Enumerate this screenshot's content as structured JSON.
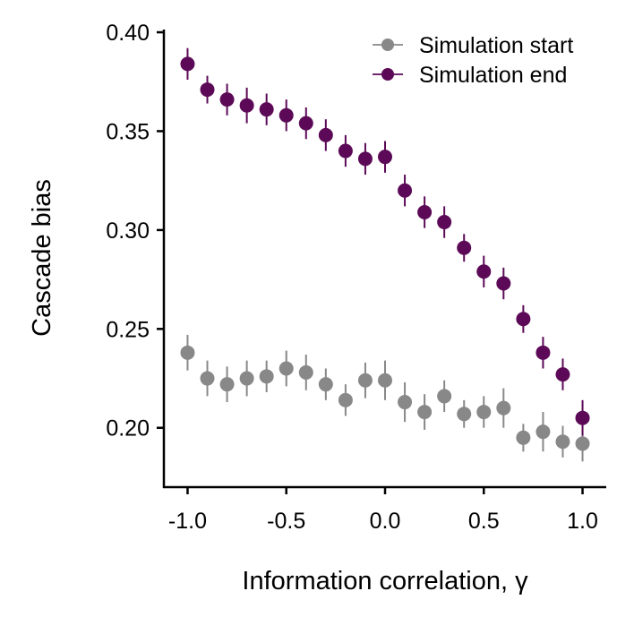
{
  "chart_data": {
    "type": "scatter",
    "xlabel": "Information correlation, γ",
    "ylabel": "Cascade bias",
    "xlim": [
      -1.12,
      1.12
    ],
    "ylim": [
      0.17,
      0.405
    ],
    "x_ticks": [
      -1.0,
      -0.5,
      0.0,
      0.5,
      1.0
    ],
    "x_tick_labels": [
      "-1.0",
      "-0.5",
      "0.0",
      "0.5",
      "1.0"
    ],
    "y_ticks": [
      0.2,
      0.25,
      0.3,
      0.35,
      0.4
    ],
    "y_tick_labels": [
      "0.20",
      "0.25",
      "0.30",
      "0.35",
      "0.40"
    ],
    "grid": false,
    "legend_position": "top-right",
    "x": [
      -1.0,
      -0.9,
      -0.8,
      -0.7,
      -0.6,
      -0.5,
      -0.4,
      -0.3,
      -0.2,
      -0.1,
      0.0,
      0.1,
      0.2,
      0.3,
      0.4,
      0.5,
      0.6,
      0.7,
      0.8,
      0.9,
      1.0
    ],
    "series": [
      {
        "name": "Simulation start",
        "color": "#888888",
        "values": [
          0.238,
          0.225,
          0.222,
          0.225,
          0.226,
          0.23,
          0.228,
          0.222,
          0.214,
          0.224,
          0.224,
          0.213,
          0.208,
          0.216,
          0.207,
          0.208,
          0.21,
          0.195,
          0.198,
          0.193,
          0.192
        ],
        "errors": [
          0.009,
          0.009,
          0.009,
          0.009,
          0.008,
          0.009,
          0.009,
          0.008,
          0.008,
          0.009,
          0.01,
          0.01,
          0.009,
          0.008,
          0.007,
          0.008,
          0.01,
          0.007,
          0.01,
          0.008,
          0.009
        ]
      },
      {
        "name": "Simulation end",
        "color": "#5c0a57",
        "values": [
          0.384,
          0.371,
          0.366,
          0.363,
          0.361,
          0.358,
          0.354,
          0.348,
          0.34,
          0.336,
          0.337,
          0.32,
          0.309,
          0.304,
          0.291,
          0.279,
          0.273,
          0.255,
          0.238,
          0.227,
          0.205
        ],
        "errors": [
          0.008,
          0.007,
          0.008,
          0.009,
          0.008,
          0.008,
          0.008,
          0.008,
          0.008,
          0.008,
          0.008,
          0.008,
          0.008,
          0.008,
          0.007,
          0.008,
          0.008,
          0.007,
          0.008,
          0.008,
          0.009
        ]
      }
    ]
  }
}
